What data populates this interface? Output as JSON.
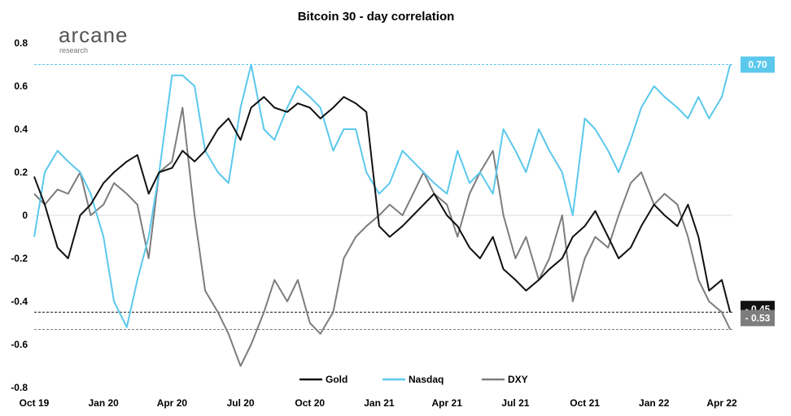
{
  "brand": {
    "name": "arcane",
    "sub": "research"
  },
  "chart_data": {
    "type": "line",
    "title": "Bitcoin 30 - day correlation",
    "xlabel": "",
    "ylabel": "",
    "ylim": [
      -0.8,
      0.8
    ],
    "yticks": [
      "0.8",
      "0.6",
      "0.4",
      "0.2",
      "0",
      "-0.2",
      "-0.4",
      "-0.6",
      "-0.8"
    ],
    "yticks_values": [
      0.8,
      0.6,
      0.4,
      0.2,
      0,
      -0.2,
      -0.4,
      -0.6,
      -0.8
    ],
    "x_range": [
      "2019-10-01",
      "2022-04-15"
    ],
    "xticks": [
      {
        "label": "Oct 19",
        "date": "2019-10-01"
      },
      {
        "label": "Jan 20",
        "date": "2020-01-01"
      },
      {
        "label": "Apr 20",
        "date": "2020-04-01"
      },
      {
        "label": "Jul 20",
        "date": "2020-07-01"
      },
      {
        "label": "Oct 20",
        "date": "2020-10-01"
      },
      {
        "label": "Jan 21",
        "date": "2021-01-01"
      },
      {
        "label": "Apr 21",
        "date": "2021-04-01"
      },
      {
        "label": "Jul 21",
        "date": "2021-07-01"
      },
      {
        "label": "Oct 21",
        "date": "2021-10-01"
      },
      {
        "label": "Jan 22",
        "date": "2022-01-01"
      },
      {
        "label": "Apr 22",
        "date": "2022-04-01"
      }
    ],
    "grid": false,
    "legend_position": "bottom",
    "series": [
      {
        "name": "Gold",
        "color": "#111111",
        "x": [
          "2019-10-01",
          "2019-10-15",
          "2019-11-01",
          "2019-11-15",
          "2019-12-01",
          "2019-12-15",
          "2020-01-01",
          "2020-01-15",
          "2020-02-01",
          "2020-02-15",
          "2020-03-01",
          "2020-03-15",
          "2020-04-01",
          "2020-04-15",
          "2020-05-01",
          "2020-05-15",
          "2020-06-01",
          "2020-06-15",
          "2020-07-01",
          "2020-07-15",
          "2020-08-01",
          "2020-08-15",
          "2020-09-01",
          "2020-09-15",
          "2020-10-01",
          "2020-10-15",
          "2020-11-01",
          "2020-11-15",
          "2020-12-01",
          "2020-12-15",
          "2021-01-01",
          "2021-01-15",
          "2021-02-01",
          "2021-02-15",
          "2021-03-01",
          "2021-03-15",
          "2021-04-01",
          "2021-04-15",
          "2021-05-01",
          "2021-05-15",
          "2021-06-01",
          "2021-06-15",
          "2021-07-01",
          "2021-07-15",
          "2021-08-01",
          "2021-08-15",
          "2021-09-01",
          "2021-09-15",
          "2021-10-01",
          "2021-10-15",
          "2021-11-01",
          "2021-11-15",
          "2021-12-01",
          "2021-12-15",
          "2022-01-01",
          "2022-01-15",
          "2022-02-01",
          "2022-02-15",
          "2022-03-01",
          "2022-03-15",
          "2022-04-01",
          "2022-04-12"
        ],
        "values": [
          0.18,
          0.05,
          -0.15,
          -0.2,
          0.0,
          0.05,
          0.15,
          0.2,
          0.25,
          0.28,
          0.1,
          0.2,
          0.22,
          0.3,
          0.25,
          0.3,
          0.4,
          0.45,
          0.35,
          0.5,
          0.55,
          0.5,
          0.48,
          0.52,
          0.5,
          0.45,
          0.5,
          0.55,
          0.52,
          0.48,
          -0.05,
          -0.1,
          -0.05,
          0.0,
          0.05,
          0.1,
          0.0,
          -0.05,
          -0.15,
          -0.2,
          -0.1,
          -0.25,
          -0.3,
          -0.35,
          -0.3,
          -0.25,
          -0.2,
          -0.1,
          -0.05,
          0.02,
          -0.1,
          -0.2,
          -0.15,
          -0.05,
          0.05,
          0.0,
          -0.05,
          0.05,
          -0.1,
          -0.35,
          -0.3,
          -0.45
        ]
      },
      {
        "name": "Nasdaq",
        "color": "#5bc8ec",
        "x": [
          "2019-10-01",
          "2019-10-15",
          "2019-11-01",
          "2019-11-15",
          "2019-12-01",
          "2019-12-15",
          "2020-01-01",
          "2020-01-15",
          "2020-02-01",
          "2020-02-15",
          "2020-03-01",
          "2020-03-15",
          "2020-04-01",
          "2020-04-15",
          "2020-05-01",
          "2020-05-15",
          "2020-06-01",
          "2020-06-15",
          "2020-07-01",
          "2020-07-15",
          "2020-08-01",
          "2020-08-15",
          "2020-09-01",
          "2020-09-15",
          "2020-10-01",
          "2020-10-15",
          "2020-11-01",
          "2020-11-15",
          "2020-12-01",
          "2020-12-15",
          "2021-01-01",
          "2021-01-15",
          "2021-02-01",
          "2021-02-15",
          "2021-03-01",
          "2021-03-15",
          "2021-04-01",
          "2021-04-15",
          "2021-05-01",
          "2021-05-15",
          "2021-06-01",
          "2021-06-15",
          "2021-07-01",
          "2021-07-15",
          "2021-08-01",
          "2021-08-15",
          "2021-09-01",
          "2021-09-15",
          "2021-10-01",
          "2021-10-15",
          "2021-11-01",
          "2021-11-15",
          "2021-12-01",
          "2021-12-15",
          "2022-01-01",
          "2022-01-15",
          "2022-02-01",
          "2022-02-15",
          "2022-03-01",
          "2022-03-15",
          "2022-04-01",
          "2022-04-12"
        ],
        "values": [
          -0.1,
          0.2,
          0.3,
          0.25,
          0.2,
          0.1,
          -0.1,
          -0.4,
          -0.52,
          -0.3,
          -0.1,
          0.2,
          0.65,
          0.65,
          0.6,
          0.3,
          0.2,
          0.15,
          0.5,
          0.7,
          0.4,
          0.35,
          0.5,
          0.6,
          0.55,
          0.5,
          0.3,
          0.4,
          0.4,
          0.2,
          0.1,
          0.15,
          0.3,
          0.25,
          0.2,
          0.15,
          0.1,
          0.3,
          0.15,
          0.2,
          0.1,
          0.4,
          0.3,
          0.2,
          0.4,
          0.3,
          0.2,
          0.0,
          0.45,
          0.4,
          0.3,
          0.2,
          0.35,
          0.5,
          0.6,
          0.55,
          0.5,
          0.45,
          0.55,
          0.45,
          0.55,
          0.7
        ]
      },
      {
        "name": "DXY",
        "color": "#7d7d7d",
        "x": [
          "2019-10-01",
          "2019-10-15",
          "2019-11-01",
          "2019-11-15",
          "2019-12-01",
          "2019-12-15",
          "2020-01-01",
          "2020-01-15",
          "2020-02-01",
          "2020-02-15",
          "2020-03-01",
          "2020-03-15",
          "2020-04-01",
          "2020-04-15",
          "2020-05-01",
          "2020-05-15",
          "2020-06-01",
          "2020-06-15",
          "2020-07-01",
          "2020-07-15",
          "2020-08-01",
          "2020-08-15",
          "2020-09-01",
          "2020-09-15",
          "2020-10-01",
          "2020-10-15",
          "2020-11-01",
          "2020-11-15",
          "2020-12-01",
          "2020-12-15",
          "2021-01-01",
          "2021-01-15",
          "2021-02-01",
          "2021-02-15",
          "2021-03-01",
          "2021-03-15",
          "2021-04-01",
          "2021-04-15",
          "2021-05-01",
          "2021-05-15",
          "2021-06-01",
          "2021-06-15",
          "2021-07-01",
          "2021-07-15",
          "2021-08-01",
          "2021-08-15",
          "2021-09-01",
          "2021-09-15",
          "2021-10-01",
          "2021-10-15",
          "2021-11-01",
          "2021-11-15",
          "2021-12-01",
          "2021-12-15",
          "2022-01-01",
          "2022-01-15",
          "2022-02-01",
          "2022-02-15",
          "2022-03-01",
          "2022-03-15",
          "2022-04-01",
          "2022-04-12"
        ],
        "values": [
          0.1,
          0.05,
          0.12,
          0.1,
          0.2,
          0.0,
          0.05,
          0.15,
          0.1,
          0.05,
          -0.2,
          0.2,
          0.25,
          0.5,
          0.0,
          -0.35,
          -0.45,
          -0.55,
          -0.7,
          -0.6,
          -0.45,
          -0.3,
          -0.4,
          -0.3,
          -0.5,
          -0.55,
          -0.45,
          -0.2,
          -0.1,
          -0.05,
          0.0,
          0.05,
          0.0,
          0.1,
          0.2,
          0.1,
          0.05,
          -0.1,
          0.1,
          0.2,
          0.3,
          0.0,
          -0.2,
          -0.1,
          -0.3,
          -0.2,
          0.0,
          -0.4,
          -0.2,
          -0.1,
          -0.15,
          0.0,
          0.15,
          0.2,
          0.05,
          0.1,
          0.05,
          -0.1,
          -0.3,
          -0.4,
          -0.45,
          -0.53
        ]
      }
    ],
    "reference_lines": [
      {
        "series": "Nasdaq",
        "value": 0.7,
        "label": "0.70",
        "color": "#5bc8ec",
        "text_color": "#ffffff"
      },
      {
        "series": "Gold",
        "value": -0.45,
        "label": "- 0.45",
        "color": "#111111",
        "text_color": "#ffffff"
      },
      {
        "series": "DXY",
        "value": -0.53,
        "label": "- 0.53",
        "color": "#7d7d7d",
        "text_color": "#ffffff"
      }
    ]
  }
}
